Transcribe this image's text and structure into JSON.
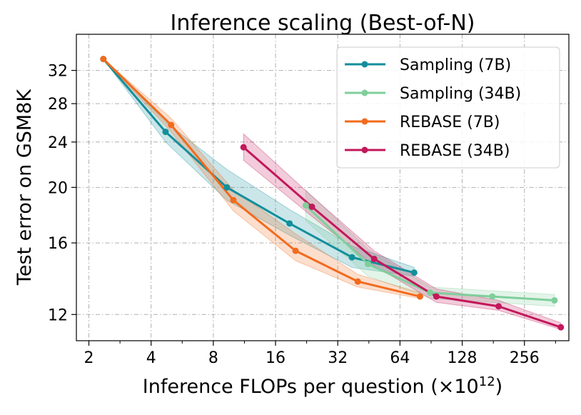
{
  "chart_data": {
    "type": "line",
    "title": "Inference scaling (Best-of-N)",
    "xlabel_prefix": "Inference FLOPs per question (×10",
    "xlabel_exp": "12",
    "xlabel_suffix": ")",
    "ylabel": "Test error on GSM8K",
    "xscale": "log2",
    "yscale": "log",
    "xlim": [
      1.74,
      420
    ],
    "ylim": [
      10.8,
      37
    ],
    "xticks": [
      2,
      4,
      8,
      16,
      32,
      64,
      128,
      256
    ],
    "xtick_labels": [
      "2",
      "4",
      "8",
      "16",
      "32",
      "64",
      "128",
      "256"
    ],
    "yticks": [
      12,
      16,
      20,
      24,
      28,
      32
    ],
    "ytick_labels": [
      "12",
      "16",
      "20",
      "24",
      "28",
      "32"
    ],
    "grid": true,
    "legend_position": "top-right",
    "series": [
      {
        "name": "Sampling (7B)",
        "color": "#138f9b",
        "x": [
          2.35,
          4.7,
          9.3,
          18.7,
          37.5,
          75
        ],
        "y": [
          33.5,
          25.0,
          20.0,
          17.3,
          15.1,
          14.2
        ],
        "band": [
          [
            33.5,
            33.5
          ],
          [
            24.0,
            26.0
          ],
          [
            19.0,
            21.5
          ],
          [
            16.5,
            18.3
          ],
          [
            14.5,
            15.8
          ],
          [
            14.0,
            14.5
          ]
        ]
      },
      {
        "name": "Sampling (34B)",
        "color": "#7fcf9b",
        "x": [
          22.4,
          44.8,
          89.6,
          179,
          358
        ],
        "y": [
          18.6,
          14.7,
          13.1,
          12.9,
          12.7
        ],
        "band": [
          [
            17.5,
            19.8
          ],
          [
            14.0,
            15.6
          ],
          [
            12.8,
            13.4
          ],
          [
            12.6,
            13.2
          ],
          [
            12.4,
            13.0
          ]
        ]
      },
      {
        "name": "REBASE (7B)",
        "color": "#f26b1d",
        "x": [
          2.35,
          5.0,
          10.0,
          20.0,
          40.0,
          80.0
        ],
        "y": [
          33.5,
          25.7,
          19.0,
          15.5,
          13.7,
          12.9
        ],
        "band": [
          [
            33.5,
            33.5
          ],
          [
            25.0,
            26.4
          ],
          [
            18.2,
            19.8
          ],
          [
            14.9,
            16.6
          ],
          [
            13.4,
            14.1
          ],
          [
            12.8,
            13.1
          ]
        ]
      },
      {
        "name": "REBASE (34B)",
        "color": "#c2185b",
        "x": [
          11.2,
          24.0,
          48.0,
          96.0,
          192.0,
          384.0
        ],
        "y": [
          23.5,
          18.5,
          15.0,
          12.9,
          12.4,
          11.4
        ],
        "band": [
          [
            22.3,
            24.8
          ],
          [
            17.8,
            19.3
          ],
          [
            14.6,
            15.5
          ],
          [
            12.6,
            13.3
          ],
          [
            12.2,
            12.7
          ],
          [
            11.3,
            11.6
          ]
        ]
      }
    ]
  }
}
